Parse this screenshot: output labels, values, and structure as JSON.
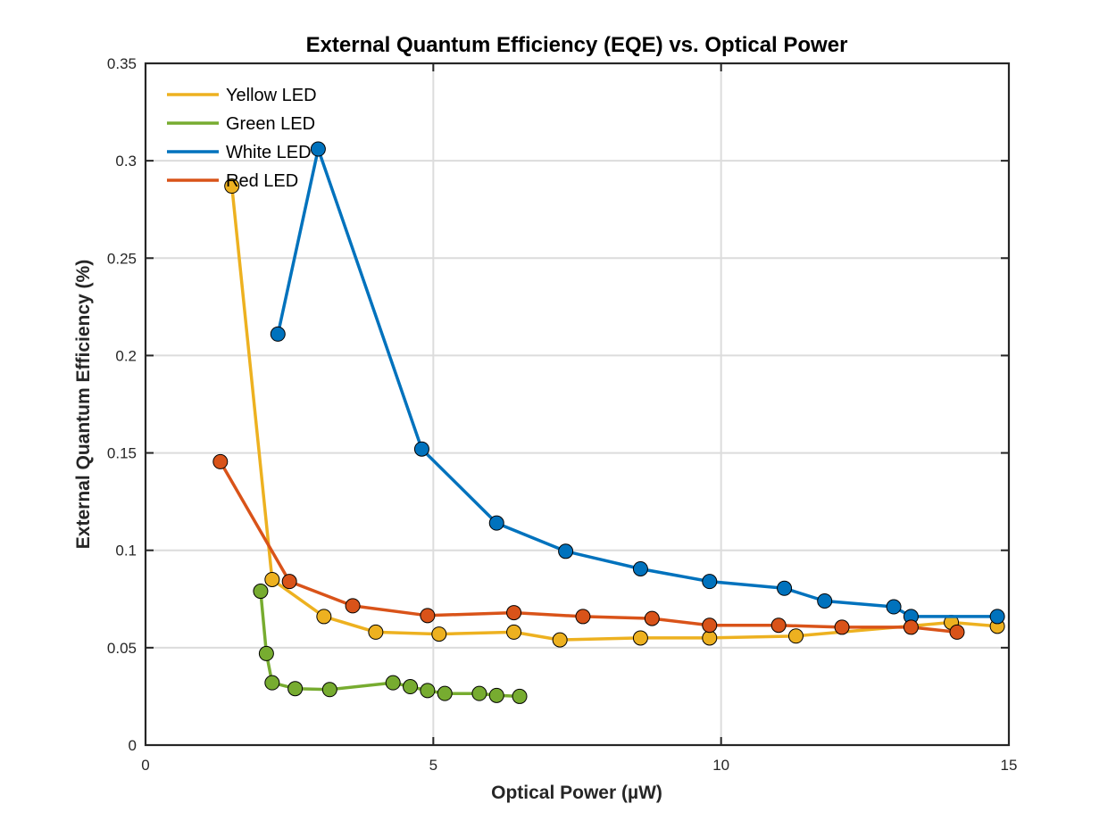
{
  "chart_data": {
    "type": "line",
    "title": "External Quantum Efficiency (EQE) vs. Optical Power",
    "xlabel": "Optical Power (µW)",
    "ylabel": "External Quantum Efficiency (%)",
    "xlim": [
      0,
      15
    ],
    "ylim": [
      0,
      0.35
    ],
    "x_ticks": [
      0,
      5,
      10,
      15
    ],
    "y_ticks": [
      0,
      0.05,
      0.1,
      0.15,
      0.2,
      0.25,
      0.3,
      0.35
    ],
    "x_tick_labels": [
      "0",
      "5",
      "10",
      "15"
    ],
    "y_tick_labels": [
      "0",
      "0.05",
      "0.1",
      "0.15",
      "0.2",
      "0.25",
      "0.3",
      "0.35"
    ],
    "grid": true,
    "legend_position": "top-left",
    "series": [
      {
        "name": "Yellow LED",
        "color": "#EDB120",
        "x": [
          1.5,
          2.2,
          3.1,
          4.0,
          5.1,
          6.4,
          7.2,
          8.6,
          9.8,
          11.3,
          14.0,
          14.8
        ],
        "y": [
          0.287,
          0.085,
          0.066,
          0.058,
          0.057,
          0.058,
          0.054,
          0.055,
          0.055,
          0.056,
          0.063,
          0.061
        ]
      },
      {
        "name": "Green LED",
        "color": "#77AC30",
        "x": [
          2.0,
          2.1,
          2.2,
          2.6,
          3.2,
          4.3,
          4.6,
          4.9,
          5.2,
          5.8,
          6.1,
          6.5
        ],
        "y": [
          0.079,
          0.047,
          0.032,
          0.029,
          0.0285,
          0.032,
          0.03,
          0.028,
          0.0265,
          0.0265,
          0.0255,
          0.025
        ]
      },
      {
        "name": "White LED",
        "color": "#0072BD",
        "x": [
          2.3,
          3.0,
          4.8,
          6.1,
          7.3,
          8.6,
          9.8,
          11.1,
          11.8,
          13.0,
          13.3,
          14.8
        ],
        "y": [
          0.211,
          0.306,
          0.152,
          0.114,
          0.0995,
          0.0905,
          0.084,
          0.0805,
          0.074,
          0.071,
          0.066,
          0.066
        ]
      },
      {
        "name": "Red LED",
        "color": "#D95319",
        "x": [
          1.3,
          2.5,
          3.6,
          4.9,
          6.4,
          7.6,
          8.8,
          9.8,
          11.0,
          12.1,
          13.3,
          14.1
        ],
        "y": [
          0.1455,
          0.084,
          0.0715,
          0.0665,
          0.068,
          0.066,
          0.065,
          0.0615,
          0.0615,
          0.0605,
          0.0605,
          0.058
        ]
      }
    ]
  }
}
